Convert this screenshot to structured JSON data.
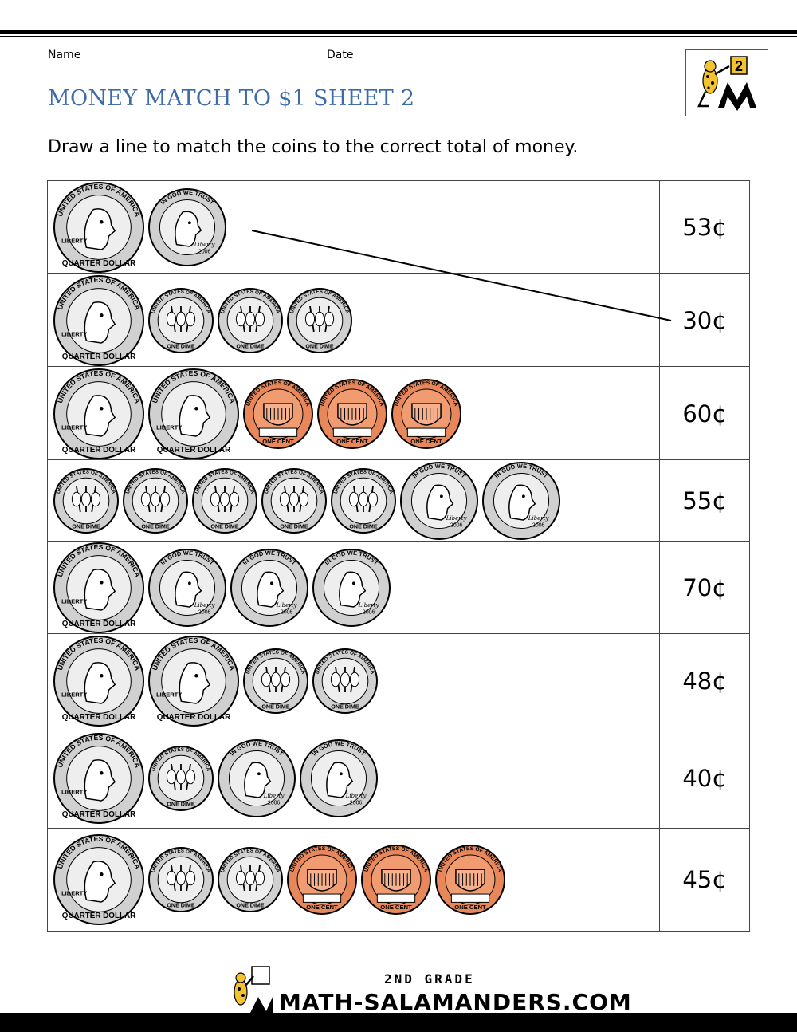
{
  "header": {
    "name_label": "Name",
    "date_label": "Date"
  },
  "title": "MONEY MATCH TO $1 SHEET 2",
  "instructions": "Draw a line to match the coins to the correct total of money.",
  "logo": {
    "badge": "2",
    "icon": "salamander-logo-icon"
  },
  "rows": [
    {
      "coins": [
        "quarter",
        "nickel"
      ],
      "amount": "53¢"
    },
    {
      "coins": [
        "quarter",
        "dime",
        "dime",
        "dime"
      ],
      "amount": "30¢"
    },
    {
      "coins": [
        "quarter",
        "quarter",
        "penny",
        "penny",
        "penny"
      ],
      "amount": "60¢"
    },
    {
      "coins": [
        "dime",
        "dime",
        "dime",
        "dime",
        "dime",
        "nickel",
        "nickel"
      ],
      "amount": "55¢"
    },
    {
      "coins": [
        "quarter",
        "nickel",
        "nickel",
        "nickel"
      ],
      "amount": "70¢"
    },
    {
      "coins": [
        "quarter",
        "quarter",
        "dime",
        "dime"
      ],
      "amount": "48¢"
    },
    {
      "coins": [
        "quarter",
        "dime",
        "nickel",
        "nickel"
      ],
      "amount": "40¢"
    },
    {
      "coins": [
        "quarter",
        "dime",
        "dime",
        "penny",
        "penny",
        "penny"
      ],
      "amount": "45¢"
    }
  ],
  "example_match": {
    "from_row": 1,
    "to_row": 2
  },
  "coin_text": {
    "quarter": {
      "top": "UNITED STATES OF AMERICA",
      "bottom": "QUARTER DOLLAR",
      "left": "LIBERTY",
      "right": "IN GOD WE TRUST"
    },
    "dime": {
      "top": "UNITED STATES OF AMERICA",
      "bottom": "ONE DIME",
      "motto": "E PLURIBUS UNUM"
    },
    "nickel": {
      "top": "IN GOD WE TRUST",
      "year": "2006",
      "sig": "Liberty"
    },
    "penny": {
      "top": "UNITED STATES OF AMERICA",
      "bottom": "ONE CENT",
      "motto": "E PLURIBUS UNUM"
    }
  },
  "colors": {
    "title": "#3b6ba8",
    "silver": "#d0d0d0",
    "copper": "#e8875a"
  },
  "footer": {
    "grade": "2ND GRADE",
    "site": "MATH-SALAMANDERS.COM"
  }
}
